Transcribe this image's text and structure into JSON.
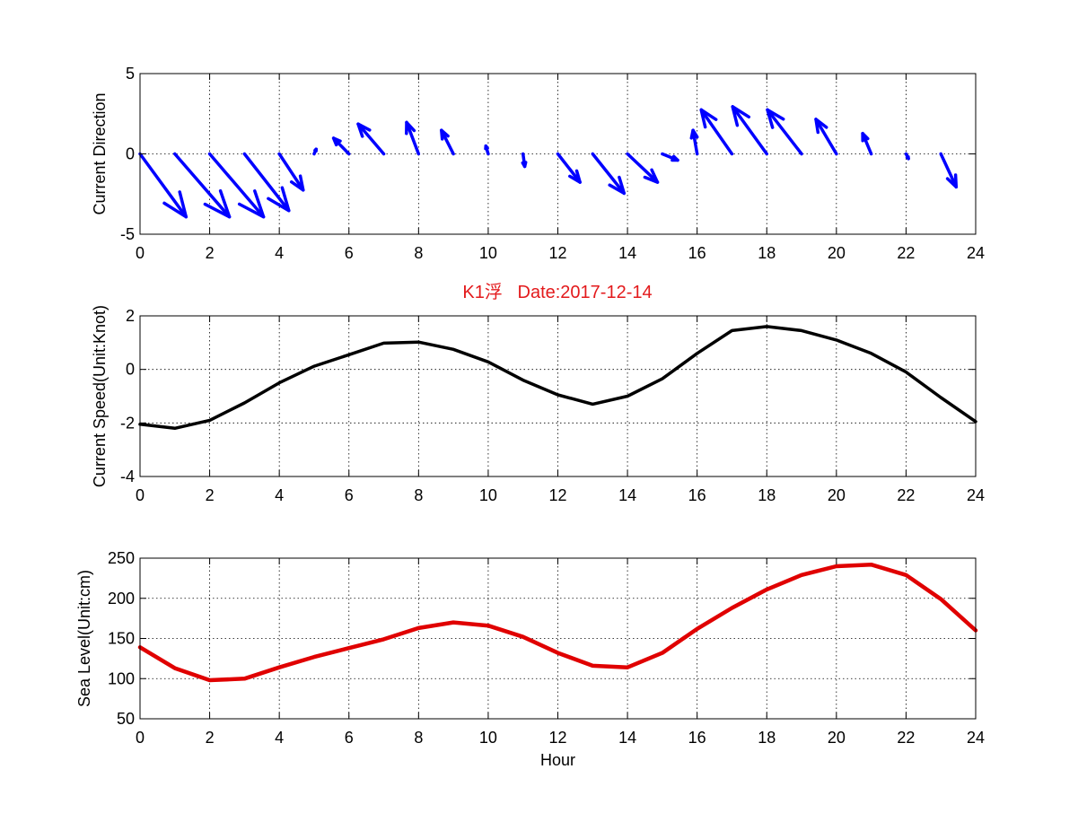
{
  "figure_title": "K1浮   Date:2017-12-14",
  "colors": {
    "title": "#e31a1c",
    "quiver": "#0000ff",
    "speed": "#000000",
    "level": "#e00000",
    "axes": "#000000",
    "grid": "#000000",
    "background": "#ffffff"
  },
  "chart_data": [
    {
      "type": "quiver",
      "id": "direction",
      "ylabel": "Current Direction",
      "xlabel": "",
      "xlim": [
        0,
        24
      ],
      "ylim": [
        -5,
        5
      ],
      "xticks": [
        0,
        2,
        4,
        6,
        8,
        10,
        12,
        14,
        16,
        18,
        20,
        22,
        24
      ],
      "yticks": [
        -5,
        0,
        5
      ],
      "grid": true,
      "series": [
        {
          "x": [
            0,
            1,
            2,
            3,
            4,
            5,
            6,
            7,
            8,
            9,
            10,
            11,
            12,
            13,
            14,
            15,
            16,
            17,
            18,
            19,
            20,
            21,
            22,
            23
          ],
          "u": [
            1.35,
            1.6,
            1.58,
            1.3,
            0.7,
            0.06,
            -0.45,
            -0.75,
            -0.35,
            -0.35,
            -0.07,
            0.05,
            0.65,
            0.92,
            0.88,
            0.45,
            -0.12,
            -0.9,
            -1.0,
            -1.0,
            -0.6,
            -0.25,
            0.07,
            0.45
          ],
          "v": [
            -4.0,
            -4.0,
            -4.0,
            -3.6,
            -2.3,
            0.3,
            1.0,
            1.9,
            2.0,
            1.5,
            0.5,
            -0.8,
            -1.8,
            -2.5,
            -1.8,
            -0.4,
            1.5,
            2.8,
            3.0,
            2.8,
            2.2,
            1.3,
            -0.3,
            -2.1
          ]
        }
      ]
    },
    {
      "type": "line",
      "id": "speed",
      "ylabel": "Current Speed(Unit:Knot)",
      "xlabel": "",
      "xlim": [
        0,
        24
      ],
      "ylim": [
        -4,
        2
      ],
      "xticks": [
        0,
        2,
        4,
        6,
        8,
        10,
        12,
        14,
        16,
        18,
        20,
        22,
        24
      ],
      "yticks": [
        -4,
        -2,
        0,
        2
      ],
      "grid": true,
      "series": [
        {
          "x": [
            0,
            1,
            2,
            3,
            4,
            5,
            6,
            7,
            8,
            9,
            10,
            11,
            12,
            13,
            14,
            15,
            16,
            17,
            18,
            19,
            20,
            21,
            22,
            23,
            24
          ],
          "y": [
            -2.05,
            -2.2,
            -1.9,
            -1.25,
            -0.5,
            0.12,
            0.55,
            0.98,
            1.02,
            0.75,
            0.28,
            -0.4,
            -0.95,
            -1.3,
            -1.0,
            -0.35,
            0.6,
            1.45,
            1.6,
            1.45,
            1.1,
            0.6,
            -0.1,
            -1.05,
            -1.95
          ]
        }
      ]
    },
    {
      "type": "line",
      "id": "level",
      "ylabel": "Sea Level(Unit:cm)",
      "xlabel": "Hour",
      "xlim": [
        0,
        24
      ],
      "ylim": [
        50,
        250
      ],
      "xticks": [
        0,
        2,
        4,
        6,
        8,
        10,
        12,
        14,
        16,
        18,
        20,
        22,
        24
      ],
      "yticks": [
        50,
        100,
        150,
        200,
        250
      ],
      "grid": true,
      "series": [
        {
          "x": [
            0,
            1,
            2,
            3,
            4,
            5,
            6,
            7,
            8,
            9,
            10,
            11,
            12,
            13,
            14,
            15,
            16,
            17,
            18,
            19,
            20,
            21,
            22,
            23,
            24
          ],
          "y": [
            139,
            113,
            98,
            100,
            114,
            127,
            138,
            149,
            163,
            170,
            166,
            152,
            132,
            116,
            114,
            132,
            162,
            188,
            211,
            229,
            240,
            242,
            229,
            199,
            160
          ]
        }
      ]
    }
  ]
}
